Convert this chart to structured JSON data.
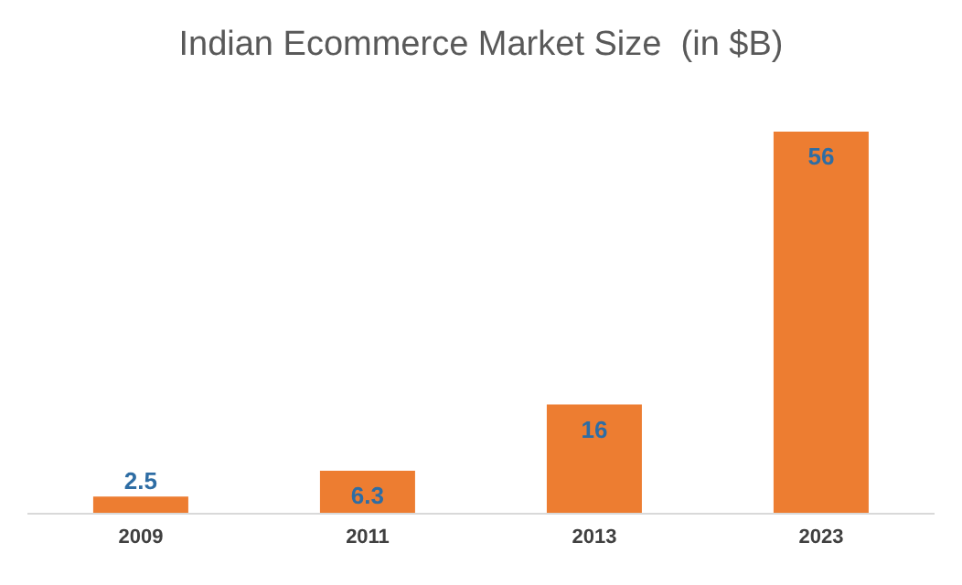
{
  "chart_data": {
    "type": "bar",
    "title": "Indian Ecommerce Market Size  (in $B)",
    "categories": [
      "2009",
      "2011",
      "2013",
      "2023"
    ],
    "values": [
      2.5,
      6.3,
      16,
      56
    ],
    "color": "#ed7d31",
    "data_labels": true,
    "grid": false
  }
}
